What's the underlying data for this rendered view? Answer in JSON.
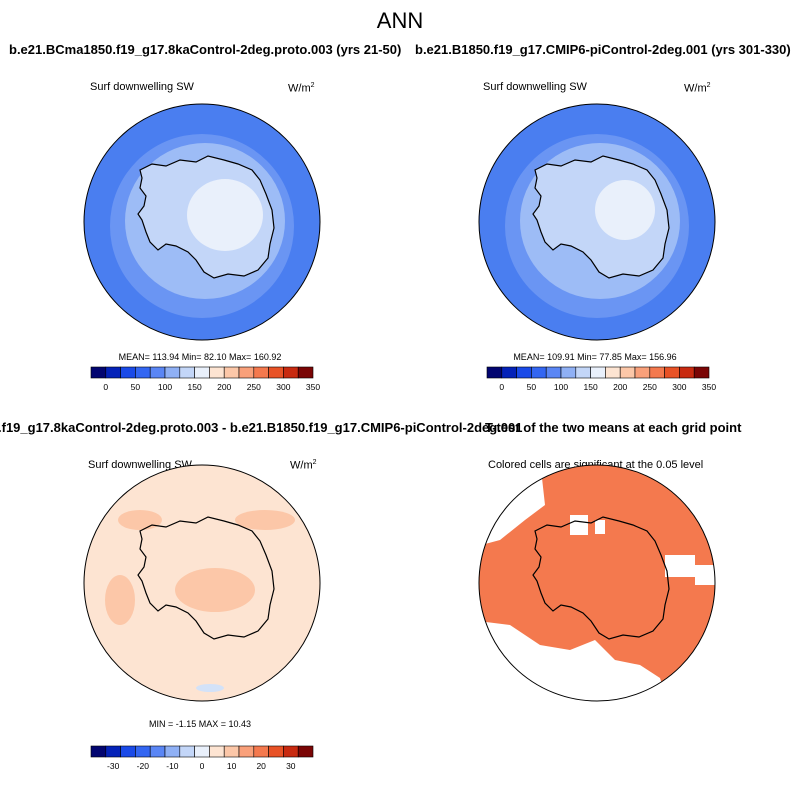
{
  "figure": {
    "title": "ANN"
  },
  "panels": [
    {
      "title": "b.e21.BCma1850.f19_g17.8kaControl-2deg.proto.003 (yrs 21-50)",
      "subtitle": "Surf downwelling SW",
      "units_base": "W/m",
      "units_exp": "2",
      "stats": "MEAN= 113.94  Min=  82.10  Max= 160.92",
      "colorbar": "absolute"
    },
    {
      "title": "b.e21.B1850.f19_g17.CMIP6-piControl-2deg.001 (yrs 301-330)",
      "subtitle": "Surf downwelling SW",
      "units_base": "W/m",
      "units_exp": "2",
      "stats": "MEAN= 109.91  Min=  77.85  Max= 156.96",
      "colorbar": "absolute"
    },
    {
      "title": ".f19_g17.8kaControl-2deg.proto.003 - b.e21.B1850.f19_g17.CMIP6-piControl-2deg.001",
      "subtitle": "Surf downwelling SW",
      "units_base": "W/m",
      "units_exp": "2",
      "stats": "MIN =  -1.15 MAX =  10.43",
      "colorbar": "difference"
    },
    {
      "title": "T-test of the two means at each grid point",
      "subtitle": "Colored cells are significant at the 0.05 level",
      "colorbar": "none"
    }
  ],
  "colorbars": {
    "absolute": {
      "colors": [
        "#020570",
        "#0422b8",
        "#1a4ae8",
        "#3366f2",
        "#5a86f5",
        "#8fb0f5",
        "#c3d6f8",
        "#e9f0fb",
        "#fde4d2",
        "#fcc7a8",
        "#f9a07a",
        "#f4794e",
        "#e85226",
        "#c82a10",
        "#7a0505"
      ],
      "tick_labels": [
        "0",
        "50",
        "100",
        "150",
        "200",
        "250",
        "300",
        "350"
      ]
    },
    "difference": {
      "colors": [
        "#020570",
        "#0422b8",
        "#1a4ae8",
        "#3366f2",
        "#5a86f5",
        "#8fb0f5",
        "#c3d6f8",
        "#e9f0fb",
        "#fde4d2",
        "#fcc7a8",
        "#f9a07a",
        "#f4794e",
        "#e85226",
        "#c82a10",
        "#7a0505"
      ],
      "tick_labels": [
        "-30",
        "-20",
        "-10",
        "0",
        "10",
        "20",
        "30"
      ]
    }
  },
  "map_colors": {
    "ocean_outer": "#4a7ef0",
    "ocean_inner": "#6a95f3",
    "sea_ice": "#9dbcf6",
    "coast_shelf": "#c3d6f8",
    "ice_sheet": "#e9f0fb",
    "diff_base": "#fde4d2",
    "diff_patch": "#fcc7a8",
    "diff_neg": "#d3e2f8",
    "significant": "#f4794e",
    "not_significant": "#ffffff"
  }
}
